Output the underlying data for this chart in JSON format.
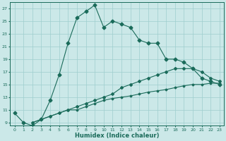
{
  "xlabel": "Humidex (Indice chaleur)",
  "background_color": "#cbe8e8",
  "grid_color": "#9ecece",
  "line_color": "#1a6b5a",
  "xlim": [
    -0.5,
    23.5
  ],
  "ylim": [
    8.5,
    28.0
  ],
  "yticks": [
    9,
    11,
    13,
    15,
    17,
    19,
    21,
    23,
    25,
    27
  ],
  "xticks": [
    0,
    1,
    2,
    3,
    4,
    5,
    6,
    7,
    8,
    9,
    10,
    11,
    12,
    13,
    14,
    15,
    16,
    17,
    18,
    19,
    20,
    21,
    22,
    23
  ],
  "line1_x": [
    0,
    1,
    2,
    3,
    4,
    5,
    6,
    7,
    8,
    9,
    10,
    11,
    12,
    13,
    14,
    15,
    16,
    17,
    18,
    19,
    20,
    21,
    22,
    23
  ],
  "line1_y": [
    10.5,
    9.0,
    8.5,
    9.5,
    12.5,
    16.5,
    21.5,
    25.5,
    26.5,
    27.5,
    24.0,
    25.0,
    24.5,
    24.0,
    22.0,
    21.5,
    21.5,
    19.0,
    19.0,
    18.5,
    17.5,
    16.0,
    15.5,
    15.0
  ],
  "line2_x": [
    2,
    3,
    4,
    5,
    6,
    7,
    8,
    9,
    10,
    11,
    12,
    13,
    14,
    15,
    16,
    17,
    18,
    19,
    20,
    21,
    22,
    23
  ],
  "line2_y": [
    9.0,
    9.5,
    10.0,
    10.5,
    11.0,
    11.5,
    12.0,
    12.5,
    13.0,
    13.5,
    14.5,
    15.0,
    15.5,
    16.0,
    16.5,
    17.0,
    17.5,
    17.5,
    17.5,
    17.0,
    16.0,
    15.5
  ],
  "line3_x": [
    2,
    3,
    4,
    5,
    6,
    7,
    8,
    9,
    10,
    11,
    12,
    13,
    14,
    15,
    16,
    17,
    18,
    19,
    20,
    21,
    22,
    23
  ],
  "line3_y": [
    9.0,
    9.5,
    10.0,
    10.5,
    11.0,
    11.0,
    11.5,
    12.0,
    12.5,
    12.8,
    13.0,
    13.2,
    13.5,
    13.8,
    14.0,
    14.2,
    14.5,
    14.8,
    15.0,
    15.0,
    15.2,
    15.2
  ]
}
